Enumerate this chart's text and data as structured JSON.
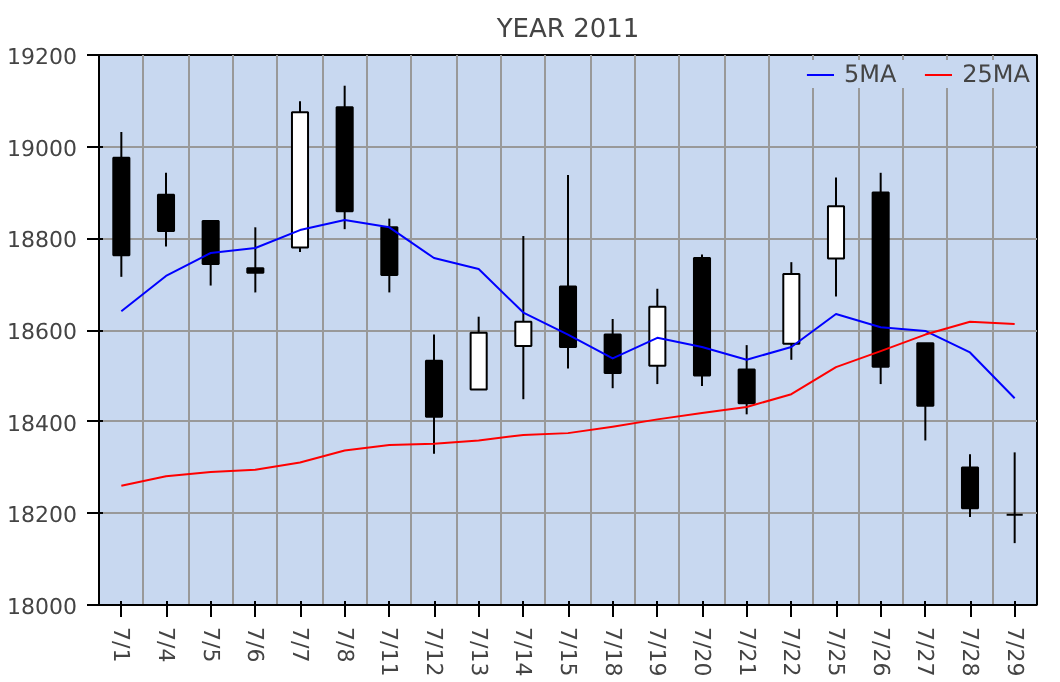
{
  "chart_data": {
    "type": "candlestick",
    "title": "YEAR 2011",
    "categories": [
      "7/1",
      "7/4",
      "7/5",
      "7/6",
      "7/7",
      "7/8",
      "7/11",
      "7/12",
      "7/13",
      "7/14",
      "7/15",
      "7/18",
      "7/19",
      "7/20",
      "7/21",
      "7/22",
      "7/25",
      "7/26",
      "7/27",
      "7/28",
      "7/29"
    ],
    "ohlc": [
      [
        18976,
        19032,
        18716,
        18763
      ],
      [
        18895,
        18943,
        18782,
        18816
      ],
      [
        18838,
        18840,
        18697,
        18744
      ],
      [
        18735,
        18824,
        18682,
        18725
      ],
      [
        18780,
        19099,
        18770,
        19075
      ],
      [
        19086,
        19133,
        18820,
        18859
      ],
      [
        18824,
        18843,
        18682,
        18720
      ],
      [
        18533,
        18590,
        18330,
        18411
      ],
      [
        18470,
        18629,
        18470,
        18594
      ],
      [
        18565,
        18805,
        18449,
        18618
      ],
      [
        18695,
        18938,
        18516,
        18563
      ],
      [
        18590,
        18624,
        18473,
        18506
      ],
      [
        18522,
        18690,
        18482,
        18651
      ],
      [
        18757,
        18765,
        18478,
        18501
      ],
      [
        18514,
        18567,
        18416,
        18440
      ],
      [
        18570,
        18748,
        18535,
        18722
      ],
      [
        18756,
        18933,
        18673,
        18870
      ],
      [
        18900,
        18943,
        18482,
        18520
      ],
      [
        18571,
        18571,
        18359,
        18435
      ],
      [
        18300,
        18329,
        18192,
        18211
      ],
      [
        18197,
        18333,
        18135,
        18197
      ]
    ],
    "colors": [
      "#000000",
      "#000000",
      "#000000",
      "#000000",
      "#ffffff",
      "#000000",
      "#000000",
      "#000000",
      "#ffffff",
      "#ffffff",
      "#000000",
      "#000000",
      "#ffffff",
      "#000000",
      "#000000",
      "#ffffff",
      "#ffffff",
      "#000000",
      "#000000",
      "#000000",
      "#000000"
    ],
    "series": [
      {
        "name": "5MA",
        "type": "line",
        "color": "#0000ff",
        "values": [
          18641,
          18718,
          18768,
          18779,
          18818,
          18840,
          18824,
          18757,
          18733,
          18638,
          18590,
          18538,
          18583,
          18563,
          18535,
          18563,
          18635,
          18606,
          18598,
          18551,
          18451
        ]
      },
      {
        "name": "25MA",
        "type": "line",
        "color": "#ff0000",
        "values": [
          18260,
          18281,
          18290,
          18295,
          18311,
          18337,
          18349,
          18352,
          18359,
          18371,
          18375,
          18389,
          18405,
          18419,
          18432,
          18460,
          18519,
          18554,
          18590,
          18618,
          18613
        ]
      }
    ],
    "ylim": [
      18000,
      19200
    ],
    "yticks": [
      18000,
      18200,
      18400,
      18600,
      18800,
      19000,
      19200
    ],
    "grid": true,
    "legend": "top right",
    "marker": "none",
    "line_style": "solid"
  }
}
